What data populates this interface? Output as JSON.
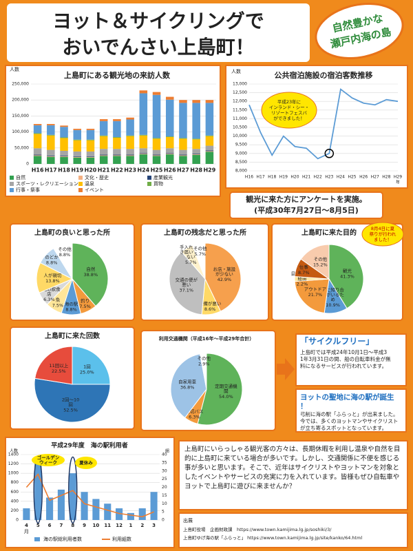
{
  "header": {
    "title_line1": "ヨット＆サイクリングで",
    "title_line2": "おいでんさい上島町！",
    "badge_line1": "自然豊かな",
    "badge_line2": "瀬戸内海の島"
  },
  "survey": {
    "line1": "観光に来た方にアンケートを実施。",
    "line2": "(平成30年7月27日～8月5日)"
  },
  "chart_data": [
    {
      "type": "stacked_bar",
      "title": "上島町にある観光地の来訪人数",
      "y_label": "人数",
      "categories": [
        "H16",
        "H17",
        "H18",
        "H19",
        "H20",
        "H21",
        "H22",
        "H23",
        "H24",
        "H25",
        "H26",
        "H27",
        "H28",
        "H29"
      ],
      "series": [
        {
          "name": "自然",
          "color": "#33a150",
          "values": [
            25000,
            22000,
            22000,
            20000,
            20000,
            25000,
            25000,
            25000,
            30000,
            25000,
            30000,
            25000,
            28000,
            38000
          ]
        },
        {
          "name": "文化・歴史",
          "color": "#f4b183",
          "values": [
            2000,
            2000,
            2000,
            2000,
            2000,
            2000,
            2000,
            2000,
            2000,
            2000,
            2000,
            2000,
            2000,
            2000
          ]
        },
        {
          "name": "産業観光",
          "color": "#264478",
          "values": [
            2000,
            2000,
            2000,
            2000,
            2000,
            2000,
            2000,
            2000,
            2000,
            2000,
            2000,
            2000,
            2000,
            2000
          ]
        },
        {
          "name": "スポーツ・レクリエーション",
          "color": "#a5a5a5",
          "values": [
            20000,
            18000,
            15000,
            15000,
            15000,
            18000,
            18000,
            18000,
            15000,
            15000,
            15000,
            15000,
            15000,
            15000
          ]
        },
        {
          "name": "温泉",
          "color": "#ffc000",
          "values": [
            45000,
            45000,
            40000,
            35000,
            35000,
            40000,
            35000,
            40000,
            40000,
            35000,
            35000,
            35000,
            30000,
            30000
          ]
        },
        {
          "name": "買物",
          "color": "#70ad47",
          "values": [
            2000,
            2000,
            2000,
            2000,
            2000,
            2000,
            2000,
            2000,
            2000,
            2000,
            2000,
            2000,
            2000,
            2000
          ]
        },
        {
          "name": "行事・祭事",
          "color": "#5b9bd5",
          "values": [
            25000,
            30000,
            33000,
            30000,
            30000,
            45000,
            50000,
            50000,
            130000,
            135000,
            115000,
            110000,
            112000,
            102000
          ]
        },
        {
          "name": "イベント",
          "color": "#ed7d31",
          "values": [
            4000,
            4000,
            4000,
            4000,
            4000,
            6000,
            6000,
            6000,
            9000,
            9000,
            9000,
            9000,
            9000,
            9000
          ]
        }
      ],
      "ylim": [
        0,
        250000
      ],
      "yticks": [
        0,
        {
          "value": 50000,
          "label": "50,000"
        },
        {
          "value": 100000,
          "label": "100,000"
        },
        {
          "value": 150000,
          "label": "150,000"
        },
        {
          "value": 200000,
          "label": "200,000"
        },
        {
          "value": 250000,
          "label": "250,000"
        }
      ],
      "grid": true
    },
    {
      "type": "line",
      "title": "公共宿泊施設の宿泊客数推移",
      "y_label": "人数",
      "x_unit": "年",
      "categories": [
        "H16",
        "H17",
        "H18",
        "H19",
        "H20",
        "H21",
        "H22",
        "H23",
        "H24",
        "H25",
        "H26",
        "H27",
        "H28",
        "H29"
      ],
      "values": [
        11800,
        10200,
        8900,
        10000,
        9400,
        9300,
        8700,
        9000,
        12700,
        12200,
        11900,
        11800,
        12100,
        12000
      ],
      "color": "#5b9bd5",
      "ylim": [
        8000,
        13000
      ],
      "yticks": [
        {
          "value": 8000,
          "label": "8,000"
        },
        {
          "value": 8500,
          "label": "8,500"
        },
        {
          "value": 9000,
          "label": "9,000"
        },
        {
          "value": 9500,
          "label": "9,500"
        },
        {
          "value": 10000,
          "label": "10,000"
        },
        {
          "value": 10500,
          "label": "10,500"
        },
        {
          "value": 11000,
          "label": "11,000"
        },
        {
          "value": 11500,
          "label": "11,500"
        },
        {
          "value": 12000,
          "label": "12,000"
        },
        {
          "value": 12500,
          "label": "12,500"
        },
        {
          "value": 13000,
          "label": "13,000"
        }
      ],
      "annotation": "平成23年にインランド・シー・リゾートフェスバができました！",
      "grid": true
    },
    {
      "type": "pie",
      "title": "上島町の良いと思った所",
      "categories": [
        "自然",
        "釣り",
        "海の駅",
        "魚",
        "地元の飲食店",
        "人が親切",
        "のどか",
        "その他"
      ],
      "values": [
        38.8,
        7.5,
        8.8,
        7.5,
        6.3,
        13.8,
        8.8,
        8.8
      ],
      "value_labels": [
        "38.8%",
        "7.5%",
        "8.8%",
        "7.5%",
        "6.3%",
        "13.8%",
        "8.8%",
        "8.8%"
      ],
      "colors": [
        "#5fb35a",
        "#f39a3c",
        "#5b9bd5",
        "#ffe699",
        "#d9d9d9",
        "#ffd966",
        "#bdd7ee",
        "#ffffff"
      ]
    },
    {
      "type": "pie",
      "title": "上島町の残念だと思った所",
      "categories": [
        "お店・施設が少ない",
        "設備が悪い",
        "交通の便が悪い",
        "手入れが行き届いていない",
        "その他"
      ],
      "values": [
        42.9,
        8.6,
        37.1,
        5.7,
        5.7
      ],
      "value_labels": [
        "42.9%",
        "8.6%",
        "37.1%",
        "5.7%",
        "5.7%"
      ],
      "colors": [
        "#f6a04d",
        "#ffd966",
        "#bfbfbf",
        "#fff2cc",
        "#ffffff"
      ]
    },
    {
      "type": "pie",
      "title": "上島町に来た目的",
      "categories": [
        "観光",
        "島に知り合いがいるため",
        "アウトドア",
        "目的地への経由",
        "仕事",
        "その他"
      ],
      "values": [
        41.3,
        10.9,
        21.7,
        2.2,
        8.7,
        15.2
      ],
      "value_labels": [
        "41.3%",
        "10.9%",
        "21.7%",
        "2.2%",
        "8.7%",
        "15.2%"
      ],
      "colors": [
        "#5fb35a",
        "#5b9bd5",
        "#f39a3c",
        "#ffe699",
        "#c55a11",
        "#f8cbad"
      ],
      "annotation": "8月4日に夏祭りが行われました！"
    },
    {
      "type": "pie",
      "title": "上島町に来た回数",
      "categories": [
        "1回",
        "2回～10回",
        "11回以上"
      ],
      "values": [
        25.0,
        52.5,
        22.5
      ],
      "value_labels": [
        "25.0%",
        "52.5%",
        "22.5%"
      ],
      "colors": [
        "#5bc0eb",
        "#2e75b6",
        "#e74c3c"
      ]
    },
    {
      "type": "pie",
      "title": "利用交通機関（平成16年〜平成29年合計）",
      "categories": [
        "定期交通機関",
        "貸切バス",
        "自家用車",
        "その他"
      ],
      "values": [
        54.0,
        6.3,
        36.8,
        2.9
      ],
      "value_labels": [
        "54.0%",
        "6.3%",
        "36.8%",
        "2.9%"
      ],
      "colors": [
        "#5fb35a",
        "#f39a3c",
        "#9dc3e6",
        "#ffffff"
      ]
    },
    {
      "type": "combo",
      "title": "平成29年度　海の駅利用者",
      "y_label": "人数",
      "y2_label": "組",
      "x_unit": "月",
      "categories": [
        "4",
        "5",
        "6",
        "7",
        "8",
        "9",
        "10",
        "11",
        "12",
        "1",
        "2",
        "3"
      ],
      "series": [
        {
          "name": "海の駅総利用者数",
          "color": "#5b9bd5",
          "values": [
            250,
            1300,
            480,
            650,
            1000,
            600,
            450,
            350,
            250,
            150,
            250,
            600
          ]
        },
        {
          "name": "利用組数",
          "color": "#ed7d31",
          "axis": "y2",
          "values": [
            20,
            28,
            12,
            15,
            18,
            10,
            8,
            6,
            4,
            3,
            2,
            5
          ]
        }
      ],
      "ylim": [
        0,
        1400
      ],
      "yticks": [
        0,
        200,
        400,
        600,
        800,
        1000,
        1200,
        1400
      ],
      "y2lim": [
        0,
        40
      ],
      "y2ticks": [
        0,
        5,
        10,
        15,
        20,
        25,
        30,
        35,
        40
      ],
      "annotations": [
        "ゴールデンウィーク",
        "夏休み"
      ],
      "grid": true
    }
  ],
  "cycle": {
    "title": "「サイクルフリー」",
    "text": "上島町では平成24年10月1日～平成31年3月31日の間、船の自転車料金が無料になるサービスが行われています。"
  },
  "umi_no_eki": {
    "title": "ヨットの聖地に海の駅が誕生！",
    "text": "弓削に海の駅「ふらっと」が出来ました。今では、多くのヨットマンやサイクリストが立ち寄るスポットとなっています。"
  },
  "body": "上島町にいらっしゃる観光客の方々は、長期休暇を利用し温泉や自然を目的に上島町に来ている場合が多いです。しかし、交通関係に不便を感じる事が多いと思います。そこで、近年はサイクリストやヨットマンを対象としたイベントやサービスの充実に力を入れています。皆様もぜひ自転車やヨットで上島町に遊びに来ませんか？",
  "sources": {
    "heading": "出展",
    "line1": "上島町役場　企画財政課　https://www.town.kamijima.lg.jp/soshiki/3/",
    "line2": "上島町ゆげ海の駅「ふらっと」 https://www.town.kamijima.lg.jp/site/kanko/64.html"
  }
}
